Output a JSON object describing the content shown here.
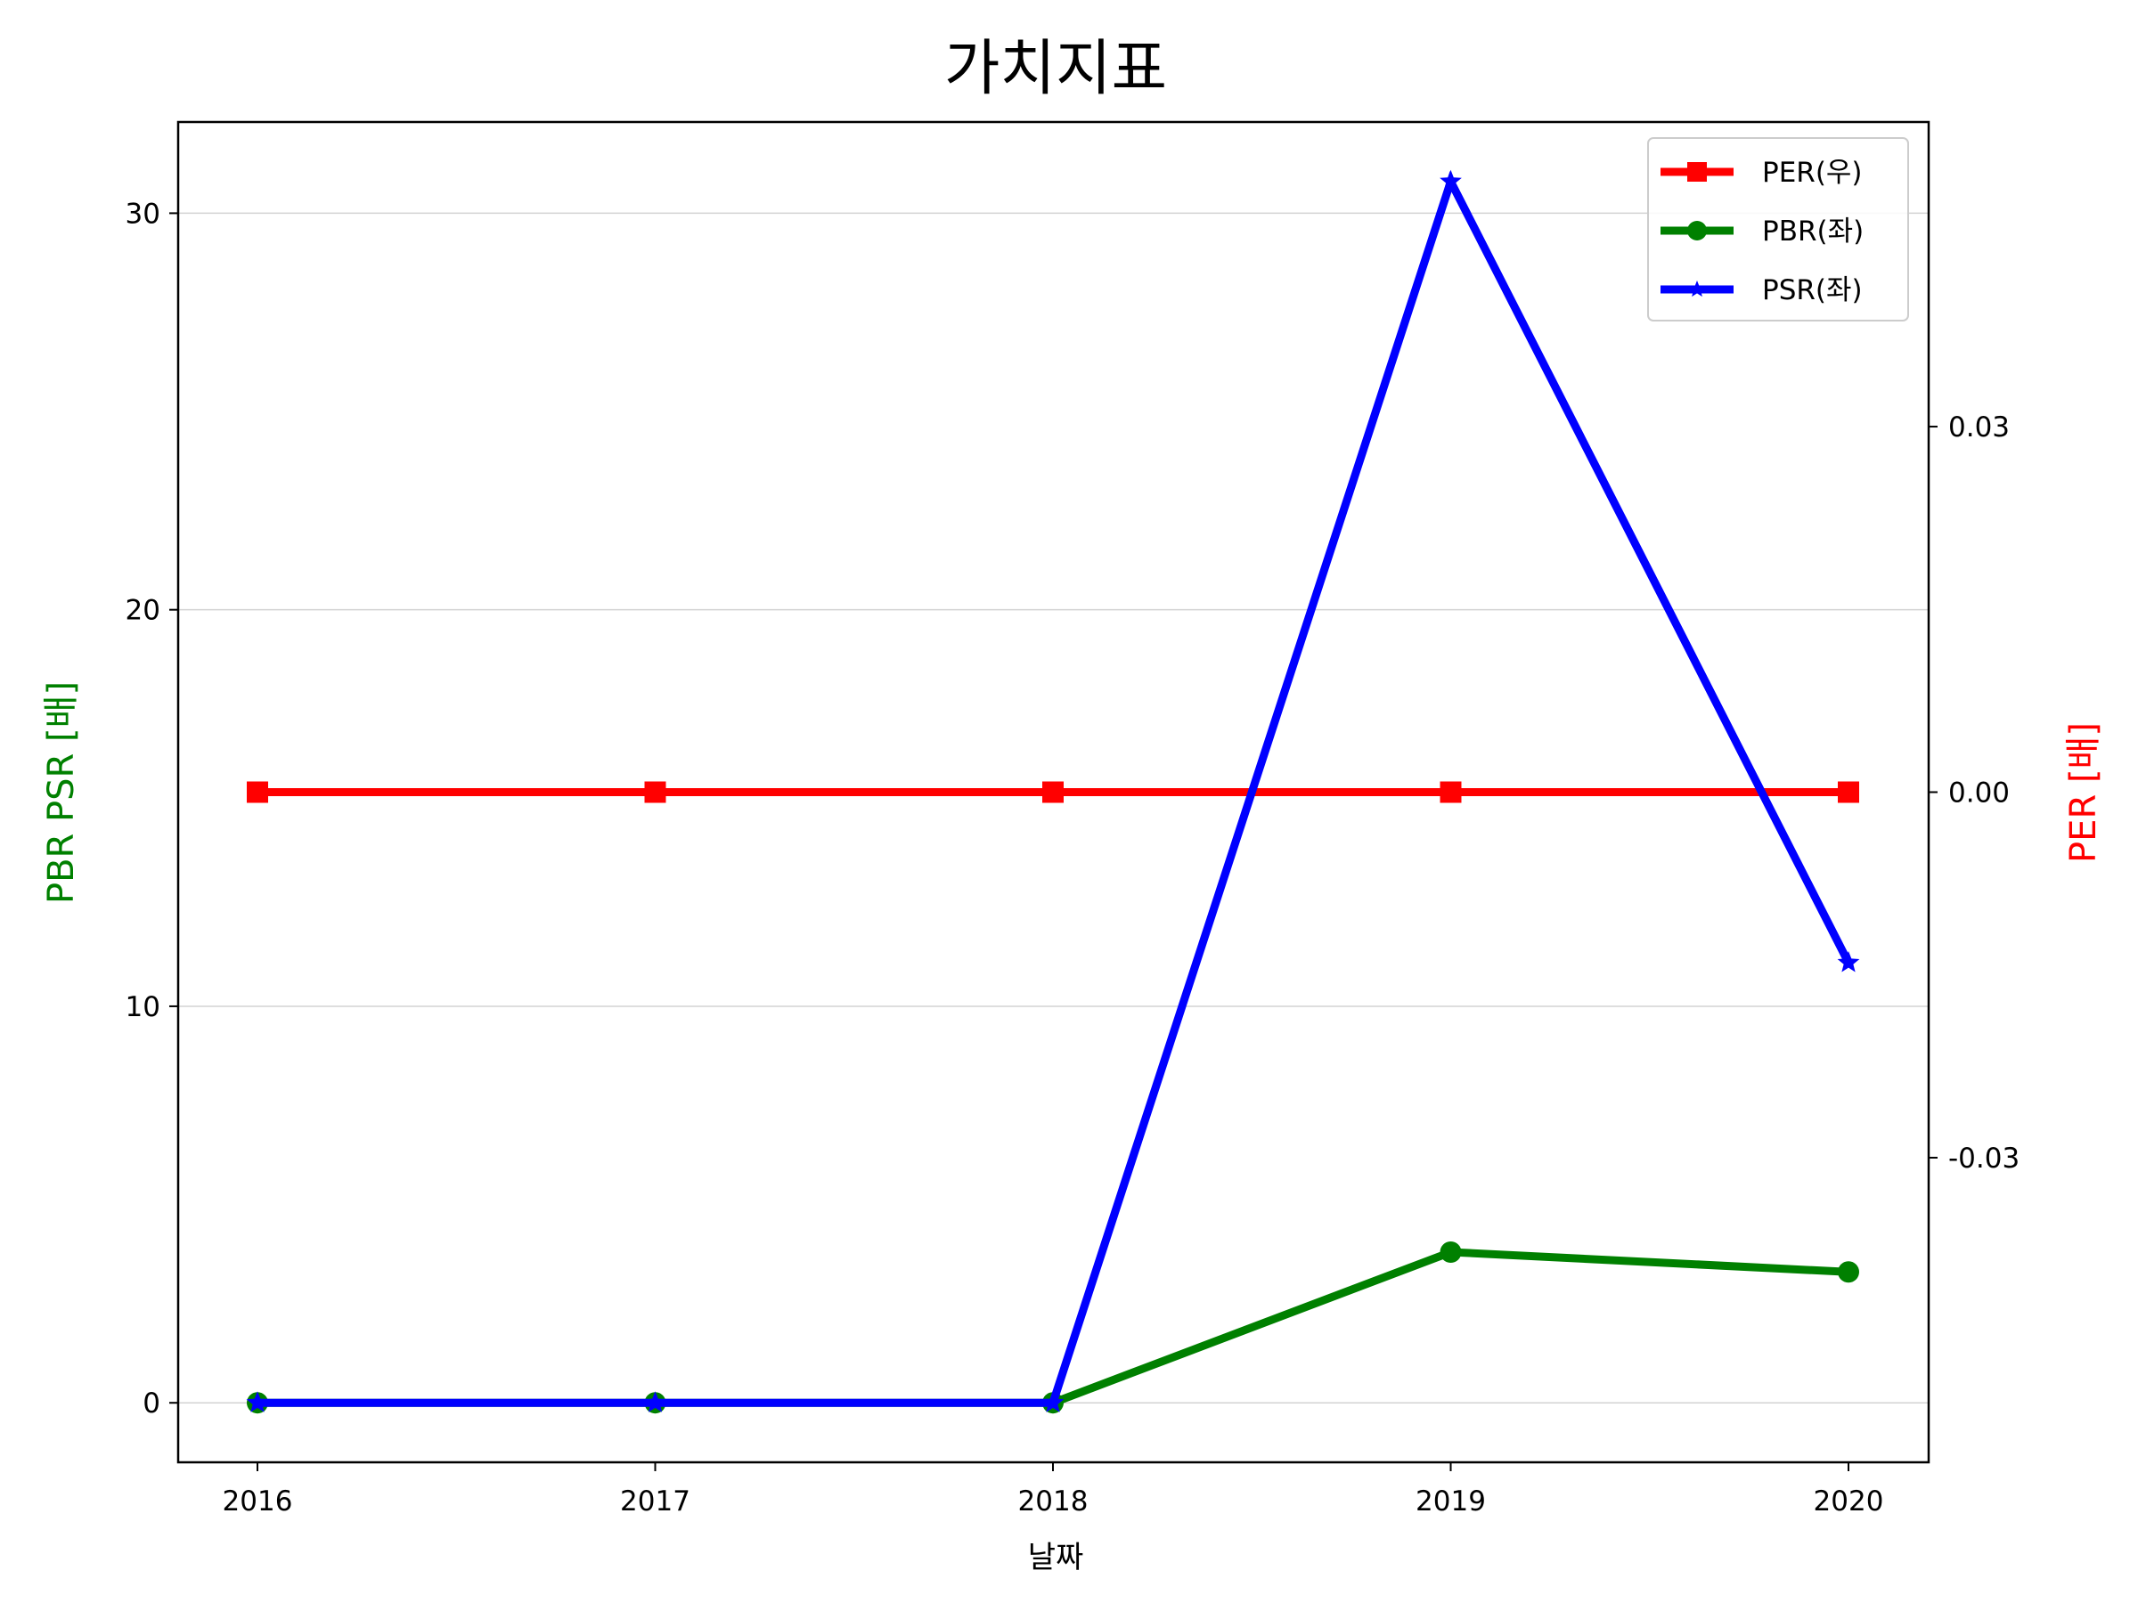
{
  "chart_data": {
    "type": "line",
    "title": "가치지표",
    "xlabel": "날짜",
    "ylabel_left": "PBR PSR [배]",
    "ylabel_right": "PER [배]",
    "categories": [
      "2016",
      "2017",
      "2018",
      "2019",
      "2020"
    ],
    "ylim_left": [
      -1.5,
      32.3
    ],
    "ylim_right": [
      -0.055,
      0.055
    ],
    "yticks_left": [
      0,
      10,
      20,
      30
    ],
    "yticks_right": [
      -0.03,
      0.0,
      0.03
    ],
    "ytick_labels_left": [
      "0",
      "10",
      "20",
      "30"
    ],
    "ytick_labels_right": [
      "-0.03",
      "0.00",
      "0.03"
    ],
    "grid": "horizontal",
    "legend_position": "top-right",
    "series": [
      {
        "name": "PER(우)",
        "axis": "right",
        "color": "#ff0000",
        "marker": "square",
        "values": [
          0,
          0,
          0,
          0,
          0
        ]
      },
      {
        "name": "PBR(좌)",
        "axis": "left",
        "color": "#008000",
        "marker": "circle",
        "values": [
          0,
          0,
          0,
          3.8,
          3.3
        ]
      },
      {
        "name": "PSR(좌)",
        "axis": "left",
        "color": "#0000ff",
        "marker": "star",
        "values": [
          0,
          0,
          0,
          30.8,
          11.1
        ]
      }
    ]
  }
}
